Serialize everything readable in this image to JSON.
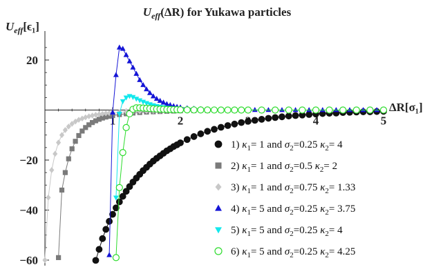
{
  "chart_data": {
    "type": "line",
    "title": "U_eff(ΔR) for Yukawa particles",
    "title_parts": {
      "main": "U",
      "sub": "eff",
      "rest": "(ΔR) for Yukawa particles"
    },
    "ylabel": "U_eff[ε₁]",
    "ylabel_parts": {
      "main": "U",
      "sub": "eff",
      "rest": "[ϵ₁]"
    },
    "xlabel": "ΔR[σ₁]",
    "xlim": [
      0,
      5
    ],
    "ylim": [
      -60,
      28
    ],
    "x_ticks": [
      {
        "value": 1,
        "label": "1"
      },
      {
        "value": 2,
        "label": "2"
      },
      {
        "value": 3,
        "label": "3"
      },
      {
        "value": 4,
        "label": "4"
      },
      {
        "value": 5,
        "label": "5"
      }
    ],
    "y_ticks": [
      {
        "value": 20,
        "label": "20"
      },
      {
        "value": -20,
        "label": "−20"
      },
      {
        "value": -40,
        "label": "−40"
      },
      {
        "value": -60,
        "label": "−60"
      }
    ],
    "grid": false,
    "legend_position": "bottom-right",
    "series": [
      {
        "name": "1) κ₁= 1 and σ₂=0.25 κ₂= 4",
        "legend": {
          "n": "1) ",
          "k1": "κ",
          "k1sub": "1",
          "a": "= 1 and ",
          "s": "σ",
          "ssub": "2",
          "b": "=0.25 ",
          "k2": "κ",
          "k2sub": "2",
          "c": "= 4"
        },
        "color": "#111111",
        "marker": "circle",
        "filled": true,
        "x": [
          0.75,
          0.8,
          0.85,
          0.9,
          0.95,
          1.0,
          1.05,
          1.1,
          1.15,
          1.2,
          1.25,
          1.3,
          1.35,
          1.4,
          1.45,
          1.5,
          1.55,
          1.6,
          1.65,
          1.7,
          1.75,
          1.8,
          1.85,
          1.9,
          1.95,
          2.0,
          2.1,
          2.2,
          2.3,
          2.4,
          2.5,
          2.6,
          2.7,
          2.8,
          2.9,
          3.0,
          3.1,
          3.2,
          3.3,
          3.4,
          3.5,
          3.6,
          3.7,
          3.8,
          3.9,
          4.0,
          4.1,
          4.2,
          4.3,
          4.4,
          4.5,
          4.6,
          4.7,
          4.8,
          4.9,
          5.0
        ],
        "y": [
          -60.1,
          -55.7,
          -51.4,
          -47.7,
          -44.5,
          -41.7,
          -39.1,
          -36.7,
          -34.5,
          -32.5,
          -30.6,
          -28.8,
          -27.2,
          -25.7,
          -24.2,
          -22.9,
          -21.6,
          -20.4,
          -19.3,
          -18.3,
          -17.3,
          -16.3,
          -15.5,
          -14.6,
          -13.9,
          -13.1,
          -11.8,
          -10.6,
          -9.5,
          -8.5,
          -7.7,
          -6.9,
          -6.2,
          -5.6,
          -5.0,
          -4.5,
          -4.1,
          -3.7,
          -3.3,
          -3.0,
          -2.7,
          -2.4,
          -2.2,
          -2.0,
          -1.8,
          -1.6,
          -1.4,
          -1.3,
          -1.2,
          -1.0,
          -0.9,
          -0.8,
          -0.7,
          -0.7,
          -0.6,
          -0.5
        ]
      },
      {
        "name": "2) κ₁= 1 and σ₂=0.5 κ₂= 2",
        "legend": {
          "n": "2) ",
          "k1": "κ",
          "k1sub": "1",
          "a": "= 1 and ",
          "s": "σ",
          "ssub": "2",
          "b": "=0.5 ",
          "k2": "κ",
          "k2sub": "2",
          "c": "= 2"
        },
        "color": "#7a7a7a",
        "marker": "square",
        "filled": true,
        "x": [
          0.2,
          0.25,
          0.3,
          0.35,
          0.4,
          0.45,
          0.5,
          0.55,
          0.6,
          0.65,
          0.7,
          0.75,
          0.8,
          0.85,
          0.9,
          0.95,
          1.0,
          1.1,
          1.2,
          1.3,
          1.4,
          1.5,
          1.6,
          1.7,
          1.8,
          1.9,
          2.0,
          2.2,
          2.4,
          2.6,
          2.8,
          3.0,
          3.2,
          3.4,
          3.6,
          3.8,
          4.0,
          4.2,
          4.4,
          4.6,
          4.8,
          5.0
        ],
        "y": [
          -59,
          -32,
          -25,
          -19.5,
          -15.5,
          -12.5,
          -10.2,
          -8.4,
          -7.0,
          -5.9,
          -5.0,
          -4.3,
          -3.7,
          -3.2,
          -2.8,
          -2.5,
          -2.2,
          -1.8,
          -1.5,
          -1.2,
          -1.0,
          -0.8,
          -0.7,
          -0.6,
          -0.5,
          -0.4,
          -0.3,
          -0.25,
          -0.2,
          -0.15,
          -0.1,
          -0.08,
          -0.06,
          -0.05,
          -0.04,
          -0.03,
          -0.02,
          -0.02,
          -0.01,
          -0.01,
          -0.01,
          0
        ]
      },
      {
        "name": "3) κ₁= 1 and σ₂=0.75 κ₂= 1.33",
        "legend": {
          "n": "3) ",
          "k1": "κ",
          "k1sub": "1",
          "a": "= 1 and ",
          "s": "σ",
          "ssub": "2",
          "b": "=0.75 ",
          "k2": "κ",
          "k2sub": "2",
          "c": "= 1.33"
        },
        "color": "#c8c8c8",
        "marker": "diamond",
        "filled": true,
        "x": [
          0.0,
          0.05,
          0.1,
          0.15,
          0.2,
          0.25,
          0.3,
          0.35,
          0.4,
          0.45,
          0.5,
          0.55,
          0.6,
          0.65,
          0.7,
          0.75,
          0.8,
          0.85,
          0.9,
          0.95,
          1.0,
          1.1,
          1.2,
          1.3,
          1.4,
          1.5,
          1.6,
          1.7,
          1.8,
          1.9,
          2.0,
          2.2,
          2.4,
          2.6,
          2.8,
          3.0,
          3.2,
          3.4,
          3.6,
          3.8,
          4.0,
          4.2,
          4.4,
          4.6,
          4.8,
          5.0
        ],
        "y": [
          -60,
          -35,
          -24,
          -17.5,
          -13,
          -10,
          -8.0,
          -6.6,
          -5.5,
          -4.6,
          -3.9,
          -3.4,
          -2.9,
          -2.5,
          -2.2,
          -1.9,
          -1.7,
          -1.5,
          -1.3,
          -1.2,
          -1.0,
          -0.8,
          -0.7,
          -0.6,
          -0.5,
          -0.4,
          -0.35,
          -0.3,
          -0.25,
          -0.2,
          -0.18,
          -0.14,
          -0.1,
          -0.08,
          -0.06,
          -0.05,
          -0.04,
          -0.03,
          -0.02,
          -0.02,
          -0.01,
          -0.01,
          -0.01,
          0,
          0,
          0
        ]
      },
      {
        "name": "4) κ₁= 5 and σ₂=0.25 κ₂= 3.75",
        "legend": {
          "n": "4) ",
          "k1": "κ",
          "k1sub": "1",
          "a": "= 5 and ",
          "s": "σ",
          "ssub": "2",
          "b": "=0.25 ",
          "k2": "κ",
          "k2sub": "2",
          "c": "= 3.75"
        },
        "color": "#1515d6",
        "marker": "triangle-up",
        "filled": true,
        "x": [
          0.95,
          1.0,
          1.05,
          1.1,
          1.15,
          1.2,
          1.25,
          1.3,
          1.35,
          1.4,
          1.45,
          1.5,
          1.55,
          1.6,
          1.65,
          1.7,
          1.75,
          1.8,
          1.85,
          1.9,
          1.95,
          2.0,
          2.1,
          2.2,
          2.3,
          2.4,
          2.5,
          2.6,
          2.7,
          2.8,
          2.9,
          3.0,
          3.1,
          3.2,
          3.3,
          3.4,
          3.5,
          3.6,
          3.7,
          3.8,
          3.9,
          4.0,
          4.1,
          4.2,
          4.3,
          4.4,
          4.5,
          4.6,
          4.7,
          4.8,
          4.9,
          5.0
        ],
        "y": [
          -58,
          -1,
          14,
          25,
          24.5,
          22,
          19.5,
          17,
          14.5,
          12,
          10,
          8.3,
          6.8,
          5.5,
          4.5,
          3.7,
          3.0,
          2.4,
          2.0,
          1.6,
          1.3,
          1.1,
          0.75,
          0.55,
          0.4,
          0.3,
          0.22,
          0.17,
          0.12,
          0.1,
          0.07,
          0.05,
          0.04,
          0.03,
          0.02,
          0.02,
          0.01,
          0.01,
          0.01,
          0,
          0,
          0,
          0,
          0,
          0,
          0,
          0,
          0,
          0,
          0,
          0,
          0
        ]
      },
      {
        "name": "5) κ₁= 5 and σ₂=0.25 κ₂= 4",
        "legend": {
          "n": "5) ",
          "k1": "κ",
          "k1sub": "1",
          "a": "= 5 and ",
          "s": "σ",
          "ssub": "2",
          "b": "=0.25 ",
          "k2": "κ",
          "k2sub": "2",
          "c": "= 4"
        },
        "color": "#12e8ec",
        "marker": "triangle-down",
        "filled": true,
        "x": [
          1.05,
          1.1,
          1.15,
          1.2,
          1.25,
          1.3,
          1.35,
          1.4,
          1.45,
          1.5,
          1.55,
          1.6,
          1.65,
          1.7,
          1.75,
          1.8,
          1.85,
          1.9,
          1.95,
          2.0,
          2.1,
          2.2,
          2.3,
          2.4,
          2.5,
          2.6,
          2.7,
          2.8,
          2.9,
          3.0,
          3.2,
          3.4,
          3.6,
          3.8,
          4.0,
          4.2,
          4.4,
          4.6,
          4.8,
          5.0
        ],
        "y": [
          -35,
          -1.5,
          3.5,
          5.0,
          5.6,
          5.2,
          4.5,
          3.9,
          3.3,
          2.8,
          2.3,
          1.9,
          1.6,
          1.3,
          1.1,
          0.9,
          0.75,
          0.6,
          0.5,
          0.4,
          0.3,
          0.2,
          0.15,
          0.1,
          0.08,
          0.06,
          0.04,
          0.03,
          0.02,
          0.02,
          0.01,
          0.01,
          0,
          0,
          0,
          0,
          0,
          0,
          0,
          0
        ]
      },
      {
        "name": "6) κ₁= 5 and σ₂=0.25 κ₂= 4.25",
        "legend": {
          "n": "6) ",
          "k1": "κ",
          "k1sub": "1",
          "a": "= 5 and ",
          "s": "σ",
          "ssub": "2",
          "b": "=0.25 ",
          "k2": "κ",
          "k2sub": "2",
          "c": "= 4.25"
        },
        "color": "#2ddc2d",
        "marker": "circle",
        "filled": false,
        "x": [
          1.05,
          1.1,
          1.15,
          1.2,
          1.25,
          1.3,
          1.35,
          1.4,
          1.45,
          1.5,
          1.55,
          1.6,
          1.65,
          1.7,
          1.75,
          1.8,
          1.85,
          1.9,
          1.95,
          2.0,
          2.1,
          2.2,
          2.3,
          2.4,
          2.5,
          2.6,
          2.7,
          2.8,
          2.9,
          3.0,
          3.2,
          3.4,
          3.6,
          3.8,
          4.0,
          4.2,
          4.4,
          4.6,
          4.8,
          5.0
        ],
        "y": [
          -59,
          -31,
          -17,
          -7,
          -1.5,
          0.3,
          0.9,
          0.9,
          0.8,
          0.7,
          0.6,
          0.5,
          0.4,
          0.35,
          0.3,
          0.25,
          0.2,
          0.16,
          0.13,
          0.1,
          0.07,
          0.05,
          0.04,
          0.03,
          0.02,
          0.01,
          0.01,
          0,
          0,
          0,
          0,
          0,
          0,
          0,
          0,
          0,
          0,
          0,
          0,
          0
        ]
      }
    ]
  }
}
